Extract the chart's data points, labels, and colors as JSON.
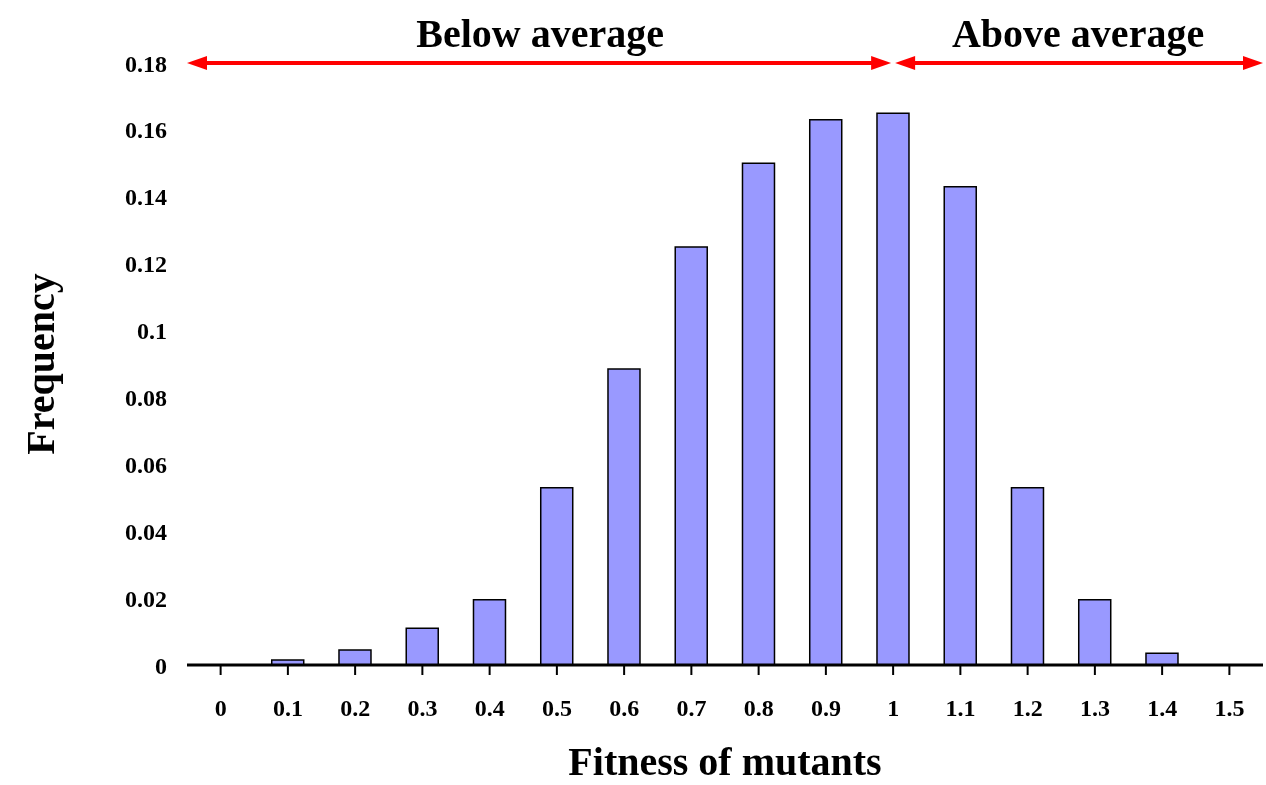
{
  "chart_data": {
    "type": "bar",
    "xlabel": "Fitness of mutants",
    "ylabel": "Frequency",
    "categories": [
      "0",
      "0.1",
      "0.2",
      "0.3",
      "0.4",
      "0.5",
      "0.6",
      "0.7",
      "0.8",
      "0.9",
      "1",
      "1.1",
      "1.2",
      "1.3",
      "1.4",
      "1.5"
    ],
    "values": [
      0,
      0.0015,
      0.0045,
      0.011,
      0.0195,
      0.053,
      0.0885,
      0.125,
      0.15,
      0.163,
      0.165,
      0.143,
      0.053,
      0.0195,
      0.0035,
      0
    ],
    "color": "#9999ff",
    "ylim": [
      0,
      0.18
    ],
    "yticks": [
      0,
      0.02,
      0.04,
      0.06,
      0.08,
      0.1,
      0.12,
      0.14,
      0.16,
      0.18
    ],
    "grid": false,
    "legend": false,
    "annotations": [
      "Below average",
      "Above average"
    ]
  }
}
